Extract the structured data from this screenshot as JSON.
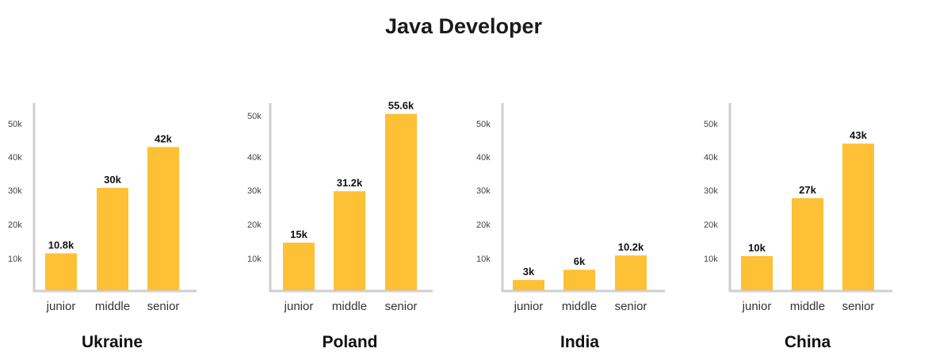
{
  "title": "Java Developer",
  "bar_color": "#FEC035",
  "axis_color": "#cfcfcf",
  "chart_data": [
    {
      "type": "bar",
      "title": "Ukraine",
      "categories": [
        "junior",
        "middle",
        "senior"
      ],
      "values": [
        10.8,
        30,
        42
      ],
      "value_labels": [
        "10.8k",
        "30k",
        "42k"
      ],
      "yticks": [
        "10k",
        "20k",
        "30k",
        "40k",
        "50k"
      ],
      "ylim": [
        0,
        55
      ]
    },
    {
      "type": "bar",
      "title": "Poland",
      "categories": [
        "junior",
        "middle",
        "senior"
      ],
      "values": [
        15,
        31.2,
        55.6
      ],
      "value_labels": [
        "15k",
        "31.2k",
        "55.6k"
      ],
      "yticks": [
        "10k",
        "20k",
        "30k",
        "40k",
        "50k"
      ],
      "ylim": [
        0,
        55.6
      ]
    },
    {
      "type": "bar",
      "title": "India",
      "categories": [
        "junior",
        "middle",
        "senior"
      ],
      "values": [
        3,
        6,
        10.2
      ],
      "value_labels": [
        "3k",
        "6k",
        "10.2k"
      ],
      "yticks": [
        "10k",
        "20k",
        "30k",
        "40k",
        "50k"
      ],
      "ylim": [
        0,
        55
      ]
    },
    {
      "type": "bar",
      "title": "China",
      "categories": [
        "junior",
        "middle",
        "senior"
      ],
      "values": [
        10,
        27,
        43
      ],
      "value_labels": [
        "10k",
        "27k",
        "43k"
      ],
      "yticks": [
        "10k",
        "20k",
        "30k",
        "40k",
        "50k"
      ],
      "ylim": [
        0,
        55
      ]
    }
  ]
}
